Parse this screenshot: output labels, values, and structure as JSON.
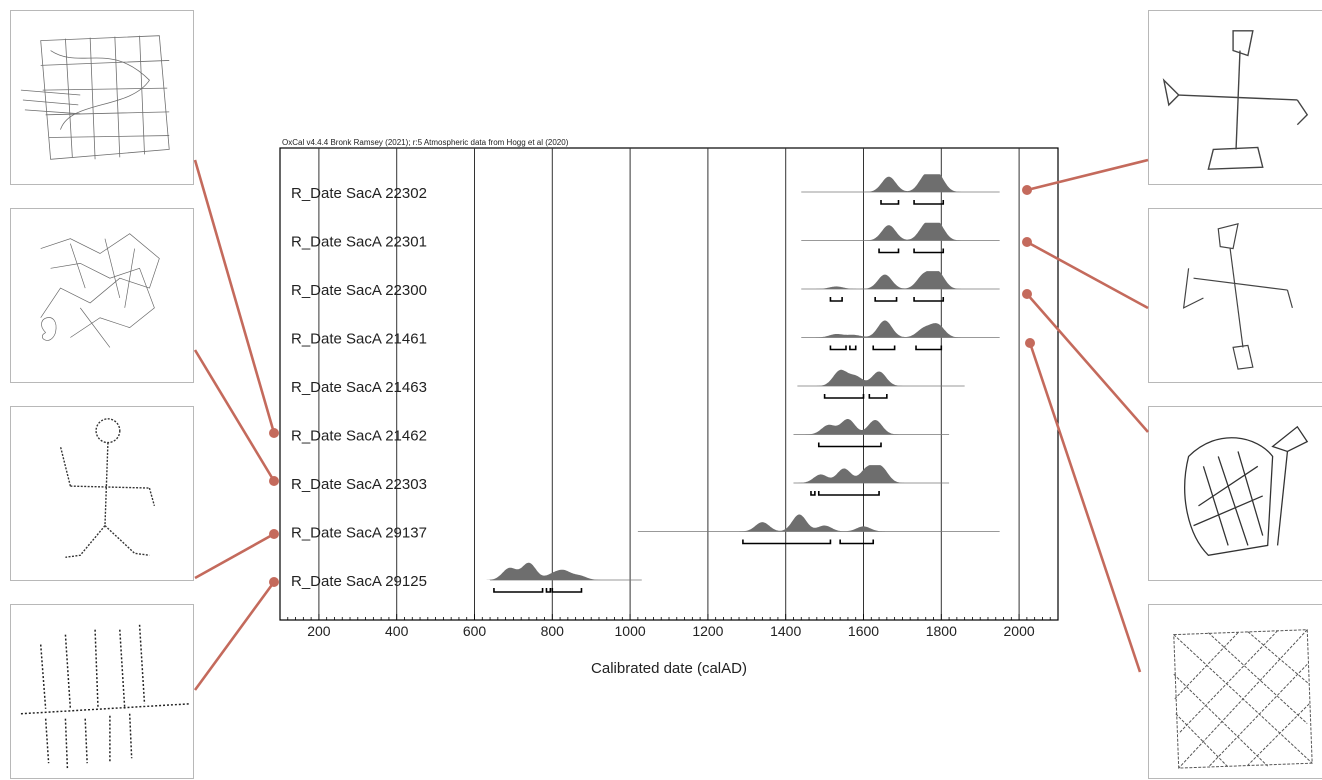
{
  "header": "OxCal v4.4.4 Bronk Ramsey (2021); r:5 Atmospheric data from Hogg et al (2020)",
  "chart_data": {
    "type": "multiple-plot",
    "xlabel": "Calibrated date (calAD)",
    "xlim": [
      100,
      2100
    ],
    "x_ticks": [
      200,
      400,
      600,
      800,
      1000,
      1200,
      1400,
      1600,
      1800,
      2000
    ],
    "grid": "vertical lines at major ticks",
    "series": [
      {
        "name": "R_Date SacA 22302",
        "range": [
          1440,
          1950
        ],
        "peaks": [
          [
            1665,
            0.9
          ],
          [
            1760,
            0.9
          ],
          [
            1790,
            1.0
          ]
        ],
        "intervals": [
          [
            1645,
            1690
          ],
          [
            1730,
            1805
          ]
        ]
      },
      {
        "name": "R_Date SacA 22301",
        "range": [
          1440,
          1950
        ],
        "peaks": [
          [
            1665,
            0.9
          ],
          [
            1760,
            0.85
          ],
          [
            1790,
            1.0
          ]
        ],
        "intervals": [
          [
            1640,
            1690
          ],
          [
            1730,
            1805
          ]
        ]
      },
      {
        "name": "R_Date SacA 22300",
        "range": [
          1440,
          1950
        ],
        "peaks": [
          [
            1530,
            0.15
          ],
          [
            1655,
            0.85
          ],
          [
            1755,
            0.8
          ],
          [
            1790,
            1.0
          ]
        ],
        "intervals": [
          [
            1515,
            1545
          ],
          [
            1630,
            1685
          ],
          [
            1730,
            1805
          ]
        ]
      },
      {
        "name": "R_Date SacA 21461",
        "range": [
          1440,
          1950
        ],
        "peaks": [
          [
            1530,
            0.2
          ],
          [
            1575,
            0.15
          ],
          [
            1655,
            1.0
          ],
          [
            1755,
            0.5
          ],
          [
            1790,
            0.75
          ]
        ],
        "intervals": [
          [
            1515,
            1555
          ],
          [
            1565,
            1580
          ],
          [
            1625,
            1680
          ],
          [
            1735,
            1800
          ]
        ]
      },
      {
        "name": "R_Date SacA 21463",
        "range": [
          1430,
          1860
        ],
        "peaks": [
          [
            1540,
            0.9
          ],
          [
            1580,
            0.55
          ],
          [
            1640,
            0.85
          ]
        ],
        "intervals": [
          [
            1500,
            1600
          ],
          [
            1615,
            1660
          ]
        ]
      },
      {
        "name": "R_Date SacA 21462",
        "range": [
          1420,
          1820
        ],
        "peaks": [
          [
            1510,
            0.55
          ],
          [
            1560,
            0.9
          ],
          [
            1630,
            0.85
          ]
        ],
        "intervals": [
          [
            1485,
            1645
          ]
        ]
      },
      {
        "name": "R_Date SacA 22303",
        "range": [
          1420,
          1820
        ],
        "peaks": [
          [
            1490,
            0.5
          ],
          [
            1550,
            0.85
          ],
          [
            1610,
            0.85
          ],
          [
            1645,
            0.9
          ]
        ],
        "intervals": [
          [
            1465,
            1475
          ],
          [
            1485,
            1640
          ]
        ]
      },
      {
        "name": "R_Date SacA 29137",
        "range": [
          1020,
          1950
        ],
        "peaks": [
          [
            1340,
            0.55
          ],
          [
            1435,
            1.0
          ],
          [
            1500,
            0.35
          ],
          [
            1600,
            0.3
          ]
        ],
        "intervals": [
          [
            1290,
            1515
          ],
          [
            1540,
            1625
          ]
        ]
      },
      {
        "name": "R_Date SacA 29125",
        "range": [
          640,
          1030
        ],
        "peaks": [
          [
            690,
            0.7
          ],
          [
            740,
            1.0
          ],
          [
            800,
            0.3
          ],
          [
            830,
            0.5
          ],
          [
            870,
            0.25
          ]
        ],
        "intervals": [
          [
            650,
            775
          ],
          [
            785,
            795
          ],
          [
            800,
            875
          ]
        ]
      }
    ]
  },
  "colors": {
    "distribution": "#6e6e6e",
    "connector": "#c46a5c",
    "frame": "#000000",
    "grid": "#333333"
  },
  "photos": {
    "left": [
      {
        "icon": "grid-engraving-icon"
      },
      {
        "icon": "scribble-engraving-icon"
      },
      {
        "icon": "stick-figure-engraving-icon"
      },
      {
        "icon": "comb-engraving-icon"
      }
    ],
    "right": [
      {
        "icon": "cross-engraving-icon-1"
      },
      {
        "icon": "cross-engraving-icon-2"
      },
      {
        "icon": "shield-engraving-icon"
      },
      {
        "icon": "square-hatch-engraving-icon"
      }
    ]
  }
}
